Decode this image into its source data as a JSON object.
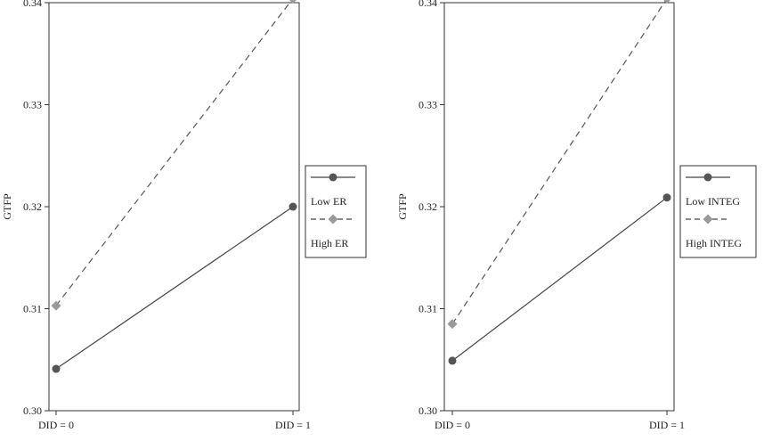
{
  "chart_data": [
    {
      "type": "line",
      "ylabel": "GTFP",
      "categories": [
        "DID = 0",
        "DID = 1"
      ],
      "ylim": [
        0.3,
        0.34
      ],
      "yticks": [
        "0.30",
        "0.31",
        "0.32",
        "0.33",
        "0.34"
      ],
      "grid": false,
      "legend_position": "right",
      "series": [
        {
          "name": "Low ER",
          "values": [
            0.3041,
            0.32
          ],
          "style": "solid",
          "marker": "circle",
          "color": "#555555"
        },
        {
          "name": "High ER",
          "values": [
            0.3103,
            0.3404
          ],
          "style": "dashed",
          "marker": "diamond",
          "color": "#9a9a9a"
        }
      ]
    },
    {
      "type": "line",
      "ylabel": "GTFP",
      "categories": [
        "DID = 0",
        "DID = 1"
      ],
      "ylim": [
        0.3,
        0.34
      ],
      "yticks": [
        "0.30",
        "0.31",
        "0.32",
        "0.33",
        "0.34"
      ],
      "grid": false,
      "legend_position": "right",
      "series": [
        {
          "name": "Low INTEG",
          "values": [
            0.3049,
            0.3209
          ],
          "style": "solid",
          "marker": "circle",
          "color": "#555555"
        },
        {
          "name": "High INTEG",
          "values": [
            0.3085,
            0.3404
          ],
          "style": "dashed",
          "marker": "diamond",
          "color": "#9a9a9a"
        }
      ]
    }
  ]
}
